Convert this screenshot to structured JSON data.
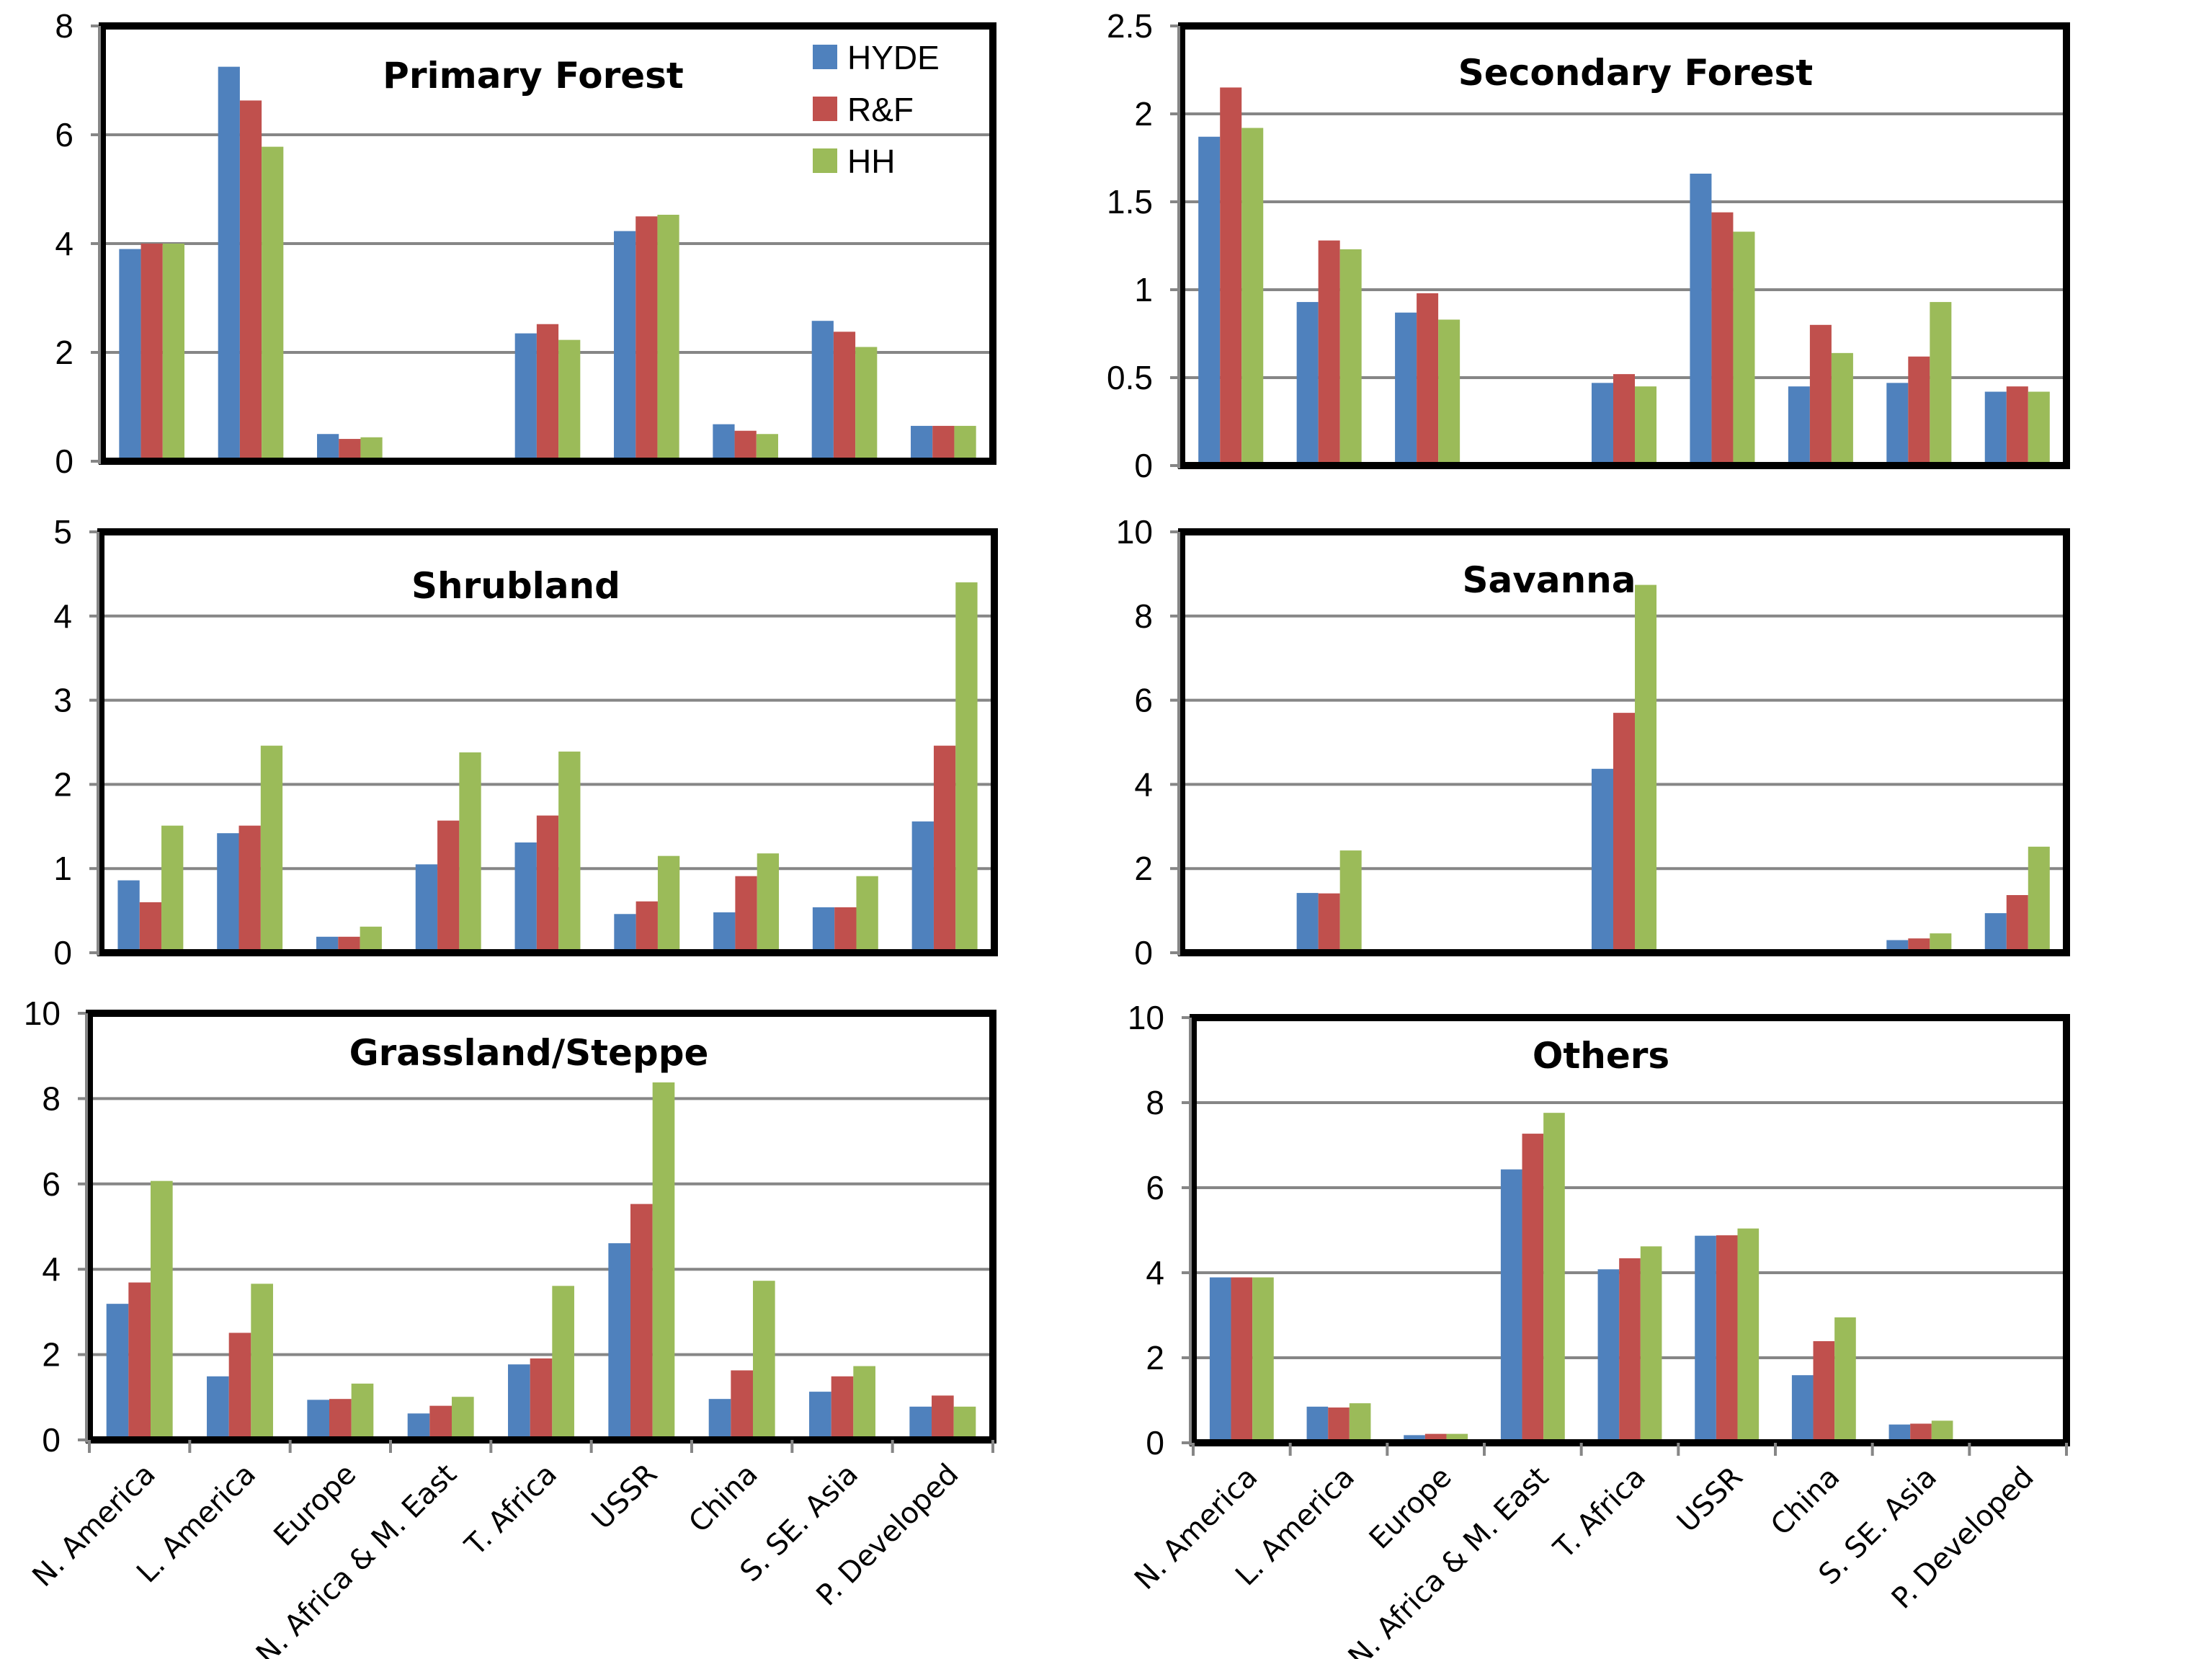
{
  "chart_data": [
    {
      "type": "bar",
      "title": "Primary Forest",
      "xlabel": "",
      "ylabel": "",
      "ylim": [
        0,
        8
      ],
      "yticks": [
        "0",
        "2",
        "4",
        "6",
        "8"
      ],
      "grid": true,
      "legend": "top-right",
      "categories": [
        "N. America",
        "L. America",
        "Europe",
        "N. Africa & M. East",
        "T. Africa",
        "USSR",
        "China",
        "S. SE. Asia",
        "P. Developed"
      ],
      "series": [
        {
          "name": "HYDE",
          "values": [
            3.9,
            7.25,
            0.5,
            0.05,
            2.35,
            4.23,
            0.68,
            2.58,
            0.65
          ]
        },
        {
          "name": "R&F",
          "values": [
            4.0,
            6.63,
            0.41,
            0.04,
            2.52,
            4.5,
            0.56,
            2.38,
            0.65
          ]
        },
        {
          "name": "HH",
          "values": [
            4.0,
            5.78,
            0.44,
            0.04,
            2.23,
            4.53,
            0.5,
            2.1,
            0.65
          ]
        }
      ]
    },
    {
      "type": "bar",
      "title": "Secondary Forest",
      "xlabel": "",
      "ylabel": "",
      "ylim": [
        0,
        2.5
      ],
      "yticks": [
        "0",
        "0.5",
        "1",
        "1.5",
        "2",
        "2.5"
      ],
      "grid": true,
      "categories": [
        "N. America",
        "L. America",
        "Europe",
        "N. Africa & M. East",
        "T. Africa",
        "USSR",
        "China",
        "S. SE. Asia",
        "P. Developed"
      ],
      "series": [
        {
          "name": "HYDE",
          "values": [
            1.87,
            0.93,
            0.87,
            0.01,
            0.47,
            1.66,
            0.45,
            0.47,
            0.42
          ]
        },
        {
          "name": "R&F",
          "values": [
            2.15,
            1.28,
            0.98,
            0.02,
            0.52,
            1.44,
            0.8,
            0.62,
            0.45
          ]
        },
        {
          "name": "HH",
          "values": [
            1.92,
            1.23,
            0.83,
            0.01,
            0.45,
            1.33,
            0.64,
            0.93,
            0.42
          ]
        }
      ]
    },
    {
      "type": "bar",
      "title": "Shrubland",
      "xlabel": "",
      "ylabel": "",
      "ylim": [
        0,
        5
      ],
      "yticks": [
        "0",
        "1",
        "2",
        "3",
        "4",
        "5"
      ],
      "grid": true,
      "categories": [
        "N. America",
        "L. America",
        "Europe",
        "N. Africa & M. East",
        "T. Africa",
        "USSR",
        "China",
        "S. SE. Asia",
        "P. Developed"
      ],
      "series": [
        {
          "name": "HYDE",
          "values": [
            0.86,
            1.42,
            0.19,
            1.05,
            1.31,
            0.46,
            0.48,
            0.54,
            1.56
          ]
        },
        {
          "name": "R&F",
          "values": [
            0.6,
            1.51,
            0.19,
            1.57,
            1.63,
            0.61,
            0.91,
            0.54,
            2.46
          ]
        },
        {
          "name": "HH",
          "values": [
            1.51,
            2.46,
            0.31,
            2.38,
            2.39,
            1.15,
            1.18,
            0.91,
            4.4
          ]
        }
      ]
    },
    {
      "type": "bar",
      "title": "Savanna",
      "xlabel": "",
      "ylabel": "",
      "ylim": [
        0,
        10
      ],
      "yticks": [
        "0",
        "2",
        "4",
        "6",
        "8",
        "10"
      ],
      "grid": true,
      "categories": [
        "N. America",
        "L. America",
        "Europe",
        "N. Africa & M. East",
        "T. Africa",
        "USSR",
        "China",
        "S. SE. Asia",
        "P. Developed"
      ],
      "series": [
        {
          "name": "HYDE",
          "values": [
            0,
            1.42,
            0,
            0,
            4.37,
            0,
            0,
            0.3,
            0.94
          ]
        },
        {
          "name": "R&F",
          "values": [
            0,
            1.41,
            0,
            0,
            5.7,
            0,
            0,
            0.34,
            1.37
          ]
        },
        {
          "name": "HH",
          "values": [
            0,
            2.43,
            0,
            0,
            8.74,
            0,
            0,
            0.46,
            2.52
          ]
        }
      ]
    },
    {
      "type": "bar",
      "title": "Grassland/Steppe",
      "xlabel": "",
      "ylabel": "",
      "ylim": [
        0,
        10
      ],
      "yticks": [
        "0",
        "2",
        "4",
        "6",
        "8",
        "10"
      ],
      "grid": true,
      "categories": [
        "N. America",
        "L. America",
        "Europe",
        "N. Africa & M. East",
        "T. Africa",
        "USSR",
        "China",
        "S. SE. Asia",
        "P. Developed"
      ],
      "series": [
        {
          "name": "HYDE",
          "values": [
            3.19,
            1.49,
            0.94,
            0.62,
            1.77,
            4.61,
            0.96,
            1.13,
            0.78
          ]
        },
        {
          "name": "R&F",
          "values": [
            3.69,
            2.51,
            0.96,
            0.8,
            1.91,
            5.53,
            1.63,
            1.49,
            1.04
          ]
        },
        {
          "name": "HH",
          "values": [
            6.07,
            3.66,
            1.32,
            1.01,
            3.61,
            8.38,
            3.73,
            1.73,
            0.78
          ]
        }
      ]
    },
    {
      "type": "bar",
      "title": "Others",
      "xlabel": "",
      "ylabel": "",
      "ylim": [
        0,
        10
      ],
      "yticks": [
        "0",
        "2",
        "4",
        "6",
        "8",
        "10"
      ],
      "grid": true,
      "categories": [
        "N. America",
        "L. America",
        "Europe",
        "N. Africa & M. East",
        "T. Africa",
        "USSR",
        "China",
        "S. SE. Asia",
        "P. Developed"
      ],
      "series": [
        {
          "name": "HYDE",
          "values": [
            3.89,
            0.85,
            0.18,
            6.43,
            4.08,
            4.87,
            1.59,
            0.43,
            0
          ]
        },
        {
          "name": "R&F",
          "values": [
            3.89,
            0.83,
            0.21,
            7.27,
            4.34,
            4.88,
            2.39,
            0.45,
            0
          ]
        },
        {
          "name": "HH",
          "values": [
            3.89,
            0.93,
            0.21,
            7.76,
            4.62,
            5.04,
            2.95,
            0.52,
            0
          ]
        }
      ]
    }
  ],
  "legend": {
    "items": [
      {
        "name": "HYDE",
        "color": "#4f81bd"
      },
      {
        "name": "R&F",
        "color": "#c0504d"
      },
      {
        "name": "HH",
        "color": "#9bbb59"
      }
    ]
  },
  "colors": {
    "gridline": "#868686",
    "frame": "#000000"
  }
}
